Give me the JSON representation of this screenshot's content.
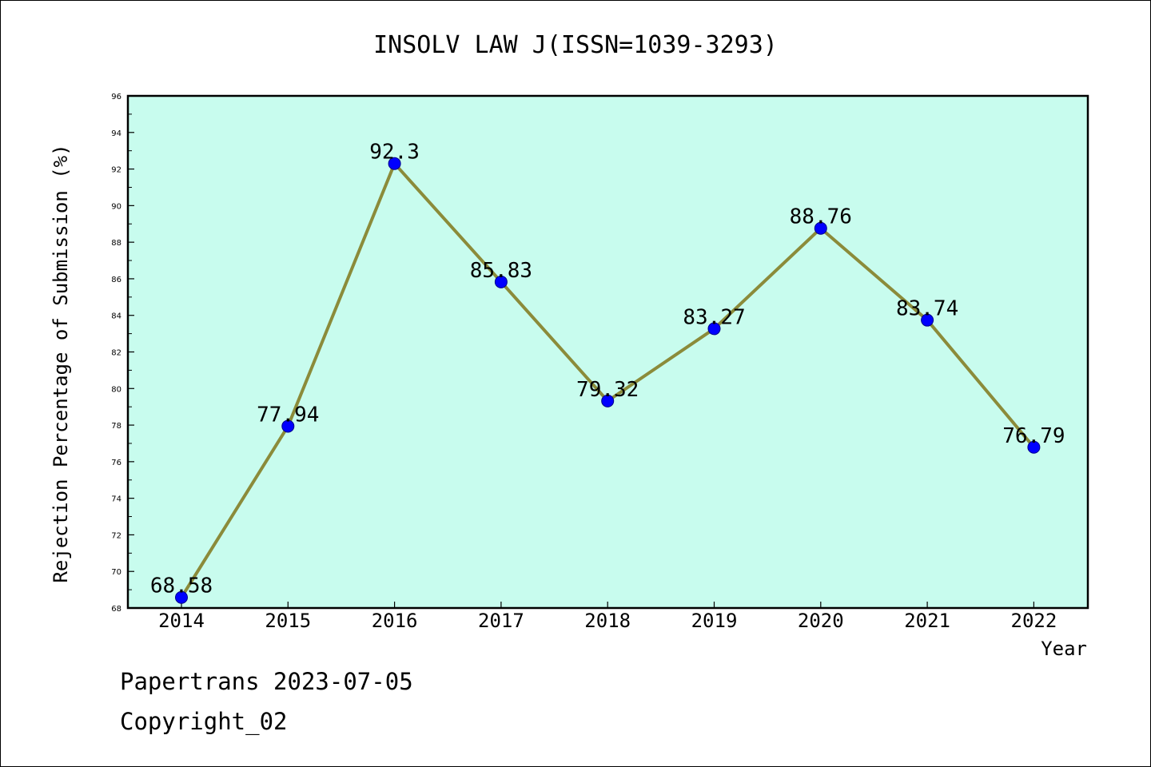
{
  "chart_data": {
    "type": "line",
    "title": "INSOLV LAW J(ISSN=1039-3293)",
    "xlabel": "Year",
    "ylabel": "Rejection Percentage of Submission (%)",
    "categories": [
      "2014",
      "2015",
      "2016",
      "2017",
      "2018",
      "2019",
      "2020",
      "2021",
      "2022"
    ],
    "values": [
      68.58,
      77.94,
      92.3,
      85.83,
      79.32,
      83.27,
      88.76,
      83.74,
      76.79
    ],
    "data_labels": [
      "68.58",
      "77.94",
      "92.3",
      "85.83",
      "79.32",
      "83.27",
      "88.76",
      "83.74",
      "76.79"
    ],
    "ylim": [
      68,
      96
    ],
    "yticks": [
      68,
      70,
      72,
      74,
      76,
      78,
      80,
      82,
      84,
      86,
      88,
      90,
      92,
      94,
      96
    ],
    "grid": false,
    "legend": "none",
    "colors": {
      "plot_background": "#c8fcee",
      "line": "#8b8b3a",
      "marker": "#0000ff"
    }
  },
  "footer": {
    "line1": "Papertrans 2023-07-05",
    "line2": "Copyright_02"
  }
}
